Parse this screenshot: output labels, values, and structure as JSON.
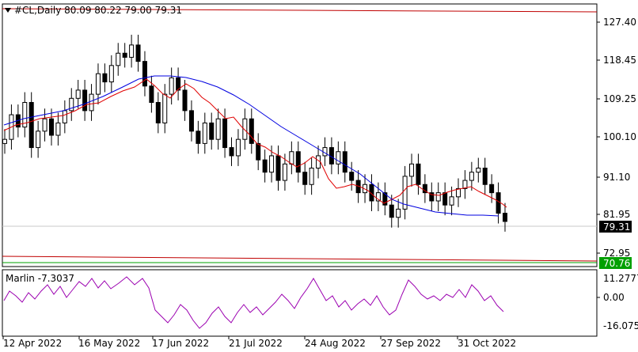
{
  "symbol": "#CL,Daily",
  "ohlc": "80.09 80.22 79.00 79.31",
  "ind_name": "Marlin",
  "ind_value": "-7.3037",
  "price_ticks": [
    "127.40",
    "118.45",
    "109.25",
    "100.10",
    "91.10",
    "81.95",
    "72.95"
  ],
  "current_price": "79.31",
  "hline_price": "70.76",
  "ind_ticks": [
    "11.2777",
    "0.00",
    "-16.0751"
  ],
  "dates": [
    "12 Apr 2022",
    "16 May 2022",
    "17 Jun 2022",
    "21 Jul 2022",
    "24 Aug 2022",
    "27 Sep 2022",
    "31 Oct 2022"
  ],
  "colors": {
    "ma_fast": "#e00000",
    "ma_slow": "#0000e0",
    "indicator": "#9b00b0",
    "hline": "#c00000",
    "hline2": "#00a000",
    "candle": "#000000"
  },
  "chart_data": {
    "type": "candlestick",
    "title": "#CL,Daily",
    "ylim": [
      68,
      132
    ],
    "series": [
      {
        "name": "close",
        "values": [
          99,
          105,
          102,
          108,
          97,
          101,
          104,
          100,
          103,
          106,
          109,
          111,
          106,
          110,
          115,
          113,
          117,
          120,
          119,
          122,
          118,
          112,
          108,
          103,
          110,
          114,
          111,
          106,
          101,
          98,
          103,
          99,
          104,
          97,
          95,
          99,
          104,
          98,
          94,
          91,
          95,
          89,
          93,
          96,
          91,
          88,
          92,
          95,
          97,
          93,
          96,
          91,
          89,
          86,
          88,
          84,
          86,
          83,
          80,
          82,
          90,
          93,
          88,
          86,
          84,
          86,
          83,
          85,
          87,
          89,
          91,
          92,
          88,
          86,
          81,
          79
        ]
      }
    ],
    "indicator": {
      "name": "Marlin",
      "value": -7.3037,
      "ylim": [
        -16.0751,
        11.2777
      ]
    }
  }
}
